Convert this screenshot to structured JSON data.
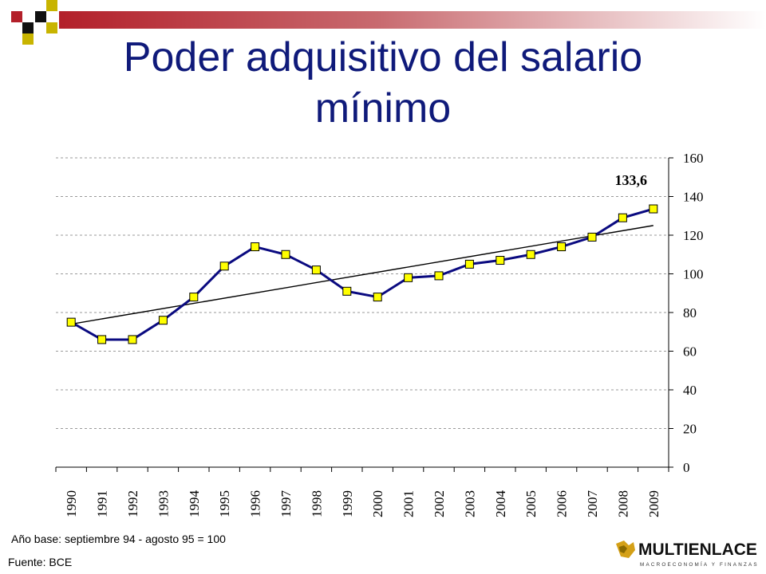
{
  "slide": {
    "title_line1": "Poder adquisitivo del salario",
    "title_line2": "mínimo",
    "base_note": "Año base:  septiembre 94 - agosto 95 = 100",
    "source": "Fuente: BCE",
    "logo_name": "MULTIENLACE",
    "logo_tagline": "MACROECONOMÍA Y FINANZAS",
    "colors": {
      "red": "#b3202a",
      "olive": "#c8b400",
      "title": "#0f1a7a",
      "line": "#0a0a80",
      "marker": "#ffff00"
    }
  },
  "chart_data": {
    "type": "line",
    "categories": [
      "1990",
      "1991",
      "1992",
      "1993",
      "1994",
      "1995",
      "1996",
      "1997",
      "1998",
      "1999",
      "2000",
      "2001",
      "2002",
      "2003",
      "2004",
      "2005",
      "2006",
      "2007",
      "2008",
      "2009"
    ],
    "series": [
      {
        "values": [
          75,
          66,
          66,
          76,
          88,
          104,
          114,
          110,
          102,
          91,
          88,
          98,
          99,
          105,
          107,
          110,
          114,
          119,
          129,
          133.6
        ]
      }
    ],
    "trendline": {
      "start": 74,
      "end": 125
    },
    "annotation": {
      "text": "133,6",
      "category": "2009"
    },
    "yticks": [
      "0",
      "20",
      "40",
      "60",
      "80",
      "100",
      "120",
      "140",
      "160"
    ],
    "ylim": [
      0,
      160
    ],
    "y_axis_side": "right",
    "grid": true,
    "legend": "none"
  }
}
